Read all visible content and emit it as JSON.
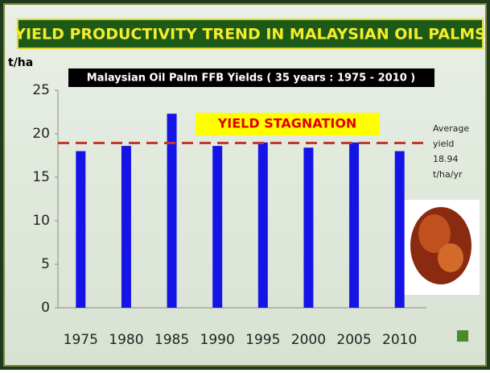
{
  "slide_title": "YIELD PRODUCTIVITY TREND IN MALAYSIAN OIL PALMS",
  "chart_data": {
    "type": "bar",
    "title": "Malaysian Oil Palm FFB Yields ( 35 years : 1975 - 2010 )",
    "ylabel": "t/ha",
    "categories": [
      "1975",
      "1980",
      "1985",
      "1990",
      "1995",
      "2000",
      "2005",
      "2010"
    ],
    "values": [
      18.0,
      18.6,
      22.3,
      18.6,
      19.0,
      18.4,
      19.0,
      18.0
    ],
    "color": "#1414e6",
    "ylim": [
      0,
      25
    ],
    "yticks": [
      0,
      5,
      10,
      15,
      20,
      25
    ],
    "grid": false,
    "stagnation_label": "YIELD STAGNATION",
    "average": {
      "lines": [
        "Average",
        "yield"
      ],
      "value": 18.94,
      "unit": "t/ha/yr",
      "color": "#c0392b"
    }
  }
}
